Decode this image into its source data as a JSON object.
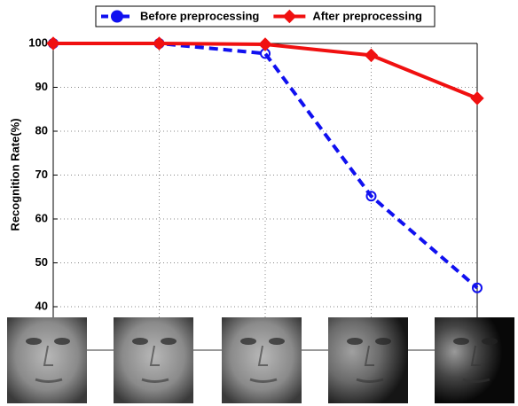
{
  "chart_data": {
    "type": "line",
    "ylabel": "Recognition Rate(%)",
    "categories": [
      null,
      null,
      null,
      null,
      null
    ],
    "series": [
      {
        "name": "Before preprocessing",
        "color": "#1010f0",
        "values": [
          100,
          100,
          97.7,
          65.2,
          44.3
        ]
      },
      {
        "name": "After preprocessing",
        "color": "#f01010",
        "values": [
          100,
          100,
          99.8,
          97.3,
          87.5
        ]
      }
    ],
    "ylim": [
      40,
      100
    ],
    "yticks": [
      40,
      50,
      60,
      70,
      80,
      90,
      100
    ],
    "grid": true,
    "legend": "top"
  }
}
